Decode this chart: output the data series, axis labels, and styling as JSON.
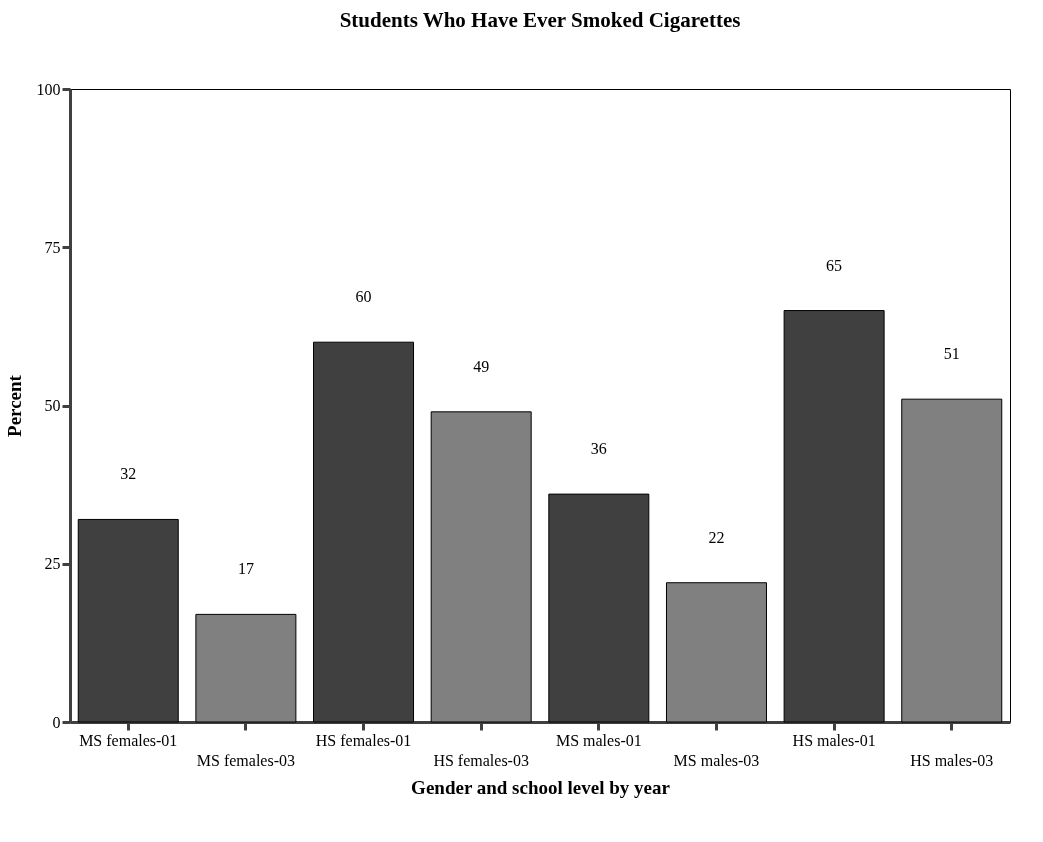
{
  "chart_data": {
    "type": "bar",
    "title": "Students Who Have Ever Smoked Cigarettes",
    "xlabel": "Gender and school level by year",
    "ylabel": "Percent",
    "categories": [
      "MS females-01",
      "MS females-03",
      "HS females-01",
      "HS females-03",
      "MS males-01",
      "MS males-03",
      "HS males-01",
      "HS males-03"
    ],
    "values": [
      32,
      17,
      60,
      49,
      36,
      22,
      65,
      51
    ],
    "colors": [
      "#404040",
      "#808080",
      "#404040",
      "#808080",
      "#404040",
      "#808080",
      "#404040",
      "#808080"
    ],
    "ylim": [
      0,
      100
    ],
    "yticks": [
      0,
      25,
      50,
      75,
      100
    ],
    "data_labels": true
  }
}
